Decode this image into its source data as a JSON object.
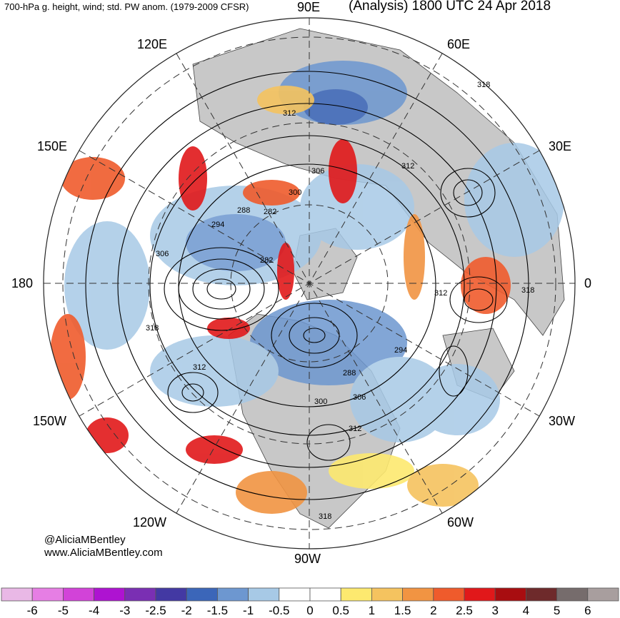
{
  "header": {
    "left_title": "700-hPa g. height, wind; std. PW anom. (1979-2009 CFSR)",
    "right_title": "(Analysis) 1800 UTC 24 Apr 2018"
  },
  "longitude_labels": {
    "lon_90e": "90E",
    "lon_120e": "120E",
    "lon_60e": "60E",
    "lon_150e": "150E",
    "lon_30e": "30E",
    "lon_180": "180",
    "lon_0": "0",
    "lon_150w": "150W",
    "lon_30w": "30W",
    "lon_120w": "120W",
    "lon_60w": "60W",
    "lon_90w": "90W"
  },
  "contour_labels": [
    "318",
    "312",
    "306",
    "300",
    "288",
    "282",
    "294",
    "306",
    "282",
    "318",
    "312",
    "300",
    "288",
    "306",
    "294",
    "312",
    "312",
    "318",
    "312",
    "318"
  ],
  "credits": {
    "handle": "@AliciaMBentley",
    "website": "www.AliciaMBentley.com"
  },
  "legend": {
    "ticks": [
      "-6",
      "-5",
      "-4",
      "-3",
      "-2.5",
      "-2",
      "-1.5",
      "-1",
      "-0.5",
      "0",
      "0.5",
      "1",
      "1.5",
      "2",
      "2.5",
      "3",
      "4",
      "5",
      "6"
    ],
    "colors": [
      "#e9b8e6",
      "#e67ee4",
      "#d243d8",
      "#ae13d1",
      "#7a2fb3",
      "#4339a3",
      "#3b66b9",
      "#6d97d0",
      "#a7c9e6",
      "#ffffff",
      "#ffffff",
      "#fde96f",
      "#f5c35f",
      "#f19442",
      "#ef5b2c",
      "#e1181a",
      "#a80d10",
      "#6e2a2b",
      "#766c6c",
      "#a89e9e"
    ]
  }
}
